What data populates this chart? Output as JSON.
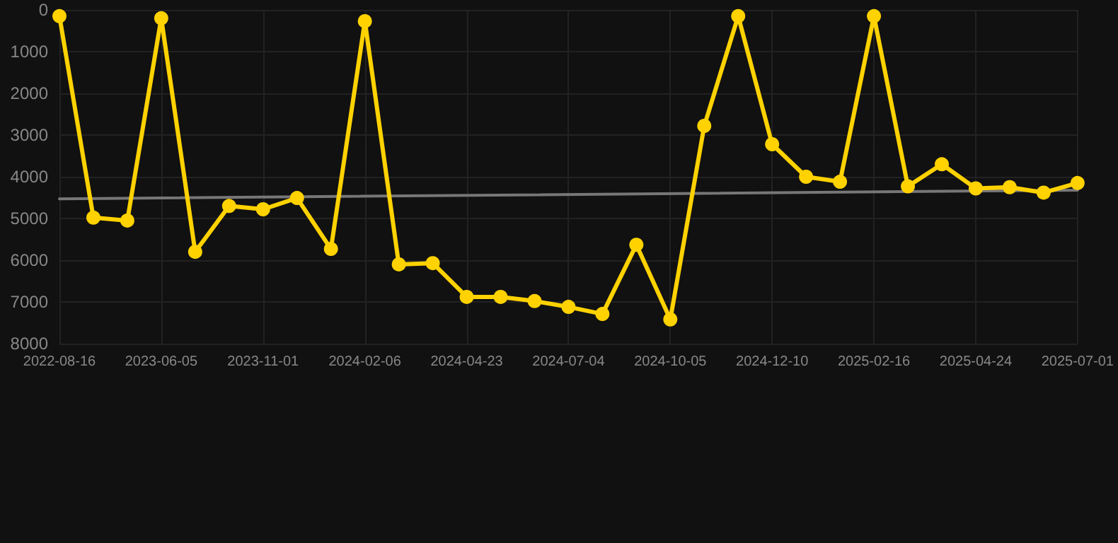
{
  "chart_data": {
    "type": "line",
    "categories": [
      "2022-08-16",
      null,
      null,
      "2023-06-05",
      null,
      null,
      "2023-11-01",
      null,
      null,
      "2024-02-06",
      null,
      null,
      "2024-04-23",
      null,
      null,
      "2024-07-04",
      null,
      null,
      "2024-10-05",
      null,
      null,
      "2024-12-10",
      null,
      null,
      "2025-02-16",
      null,
      null,
      "2025-04-24",
      null,
      null,
      "2025-07-01"
    ],
    "series": [
      {
        "color": "#ffd200",
        "marker": "circle",
        "values": [
          150,
          4980,
          5050,
          200,
          5800,
          4700,
          4780,
          4510,
          5730,
          270,
          6100,
          6070,
          6880,
          6880,
          6980,
          7120,
          7290,
          5630,
          7420,
          2780,
          150,
          3220,
          4000,
          4120,
          150,
          4230,
          3700,
          4280,
          4250,
          4380,
          4150
        ]
      },
      {
        "type": "line",
        "color": "#777777",
        "marker": "none",
        "values": [
          4530,
          null,
          null,
          null,
          null,
          null,
          null,
          null,
          null,
          null,
          null,
          null,
          null,
          null,
          null,
          null,
          null,
          null,
          null,
          null,
          null,
          null,
          null,
          null,
          null,
          null,
          null,
          null,
          null,
          null,
          4320
        ]
      }
    ],
    "ylim": [
      8000,
      0
    ],
    "yticks": [
      0,
      1000,
      2000,
      3000,
      4000,
      5000,
      6000,
      7000,
      8000
    ],
    "grid": true,
    "line_style": "solid"
  }
}
